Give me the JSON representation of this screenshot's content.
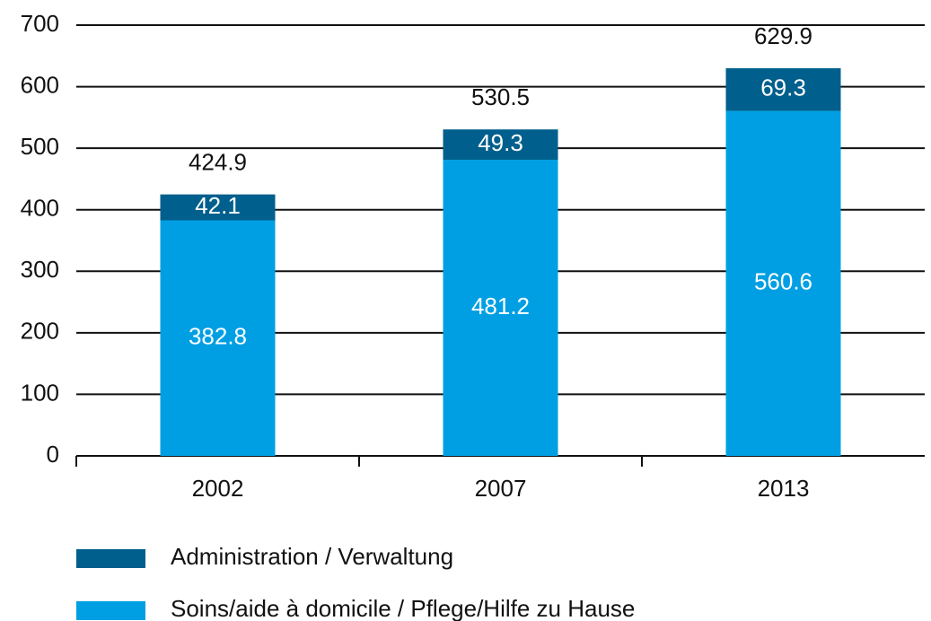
{
  "chart_data": {
    "type": "stacked_bar",
    "categories": [
      "2002",
      "2007",
      "2013"
    ],
    "series": [
      {
        "name": "Administration / Verwaltung",
        "color": "#005f8c",
        "values": [
          42.1,
          49.3,
          69.3
        ]
      },
      {
        "name": "Soins/aide à domicile / Pflege/Hilfe zu Hause",
        "color": "#009fe3",
        "values": [
          382.8,
          481.2,
          560.6
        ]
      }
    ],
    "totals": [
      424.9,
      530.5,
      629.9
    ],
    "ylim": [
      0,
      700
    ],
    "yticks": [
      0,
      100,
      200,
      300,
      400,
      500,
      600,
      700
    ],
    "grid": true
  }
}
